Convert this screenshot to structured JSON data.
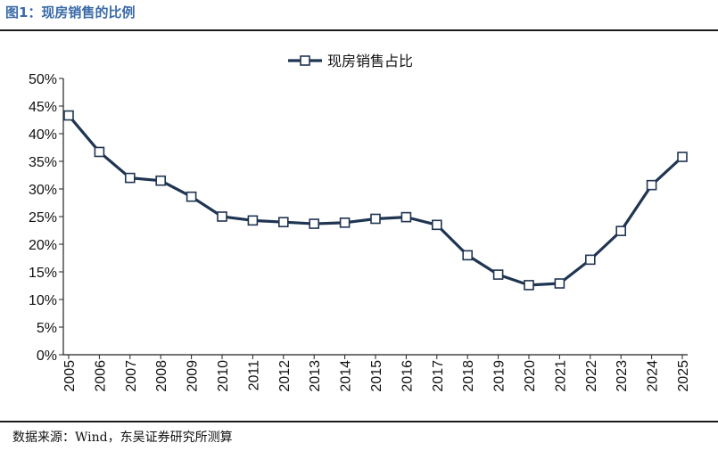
{
  "header": {
    "title": "图1：现房销售的比例"
  },
  "footer": {
    "source": "数据来源：Wind，东吴证券研究所测算"
  },
  "colors": {
    "line": "#1f3552",
    "marker_fill": "#ffffff",
    "title": "#3a6aa8"
  },
  "chart_data": {
    "type": "line",
    "title": "",
    "xlabel": "",
    "ylabel": "",
    "ylim": [
      0,
      50
    ],
    "yticks": [
      "0%",
      "5%",
      "10%",
      "15%",
      "20%",
      "25%",
      "30%",
      "35%",
      "40%",
      "45%",
      "50%"
    ],
    "grid": false,
    "legend": "top-center",
    "categories": [
      "2005",
      "2006",
      "2007",
      "2008",
      "2009",
      "2010",
      "2011",
      "2012",
      "2013",
      "2014",
      "2015",
      "2016",
      "2017",
      "2018",
      "2019",
      "2020",
      "2021",
      "2022",
      "2023",
      "2024",
      "2025"
    ],
    "series": [
      {
        "name": "现房销售占比",
        "marker": "square",
        "values": [
          43.3,
          36.7,
          32.0,
          31.5,
          28.6,
          25.0,
          24.3,
          24.0,
          23.7,
          23.9,
          24.6,
          24.9,
          23.5,
          18.0,
          14.5,
          12.6,
          12.9,
          17.2,
          22.4,
          30.7,
          35.8
        ]
      }
    ]
  }
}
